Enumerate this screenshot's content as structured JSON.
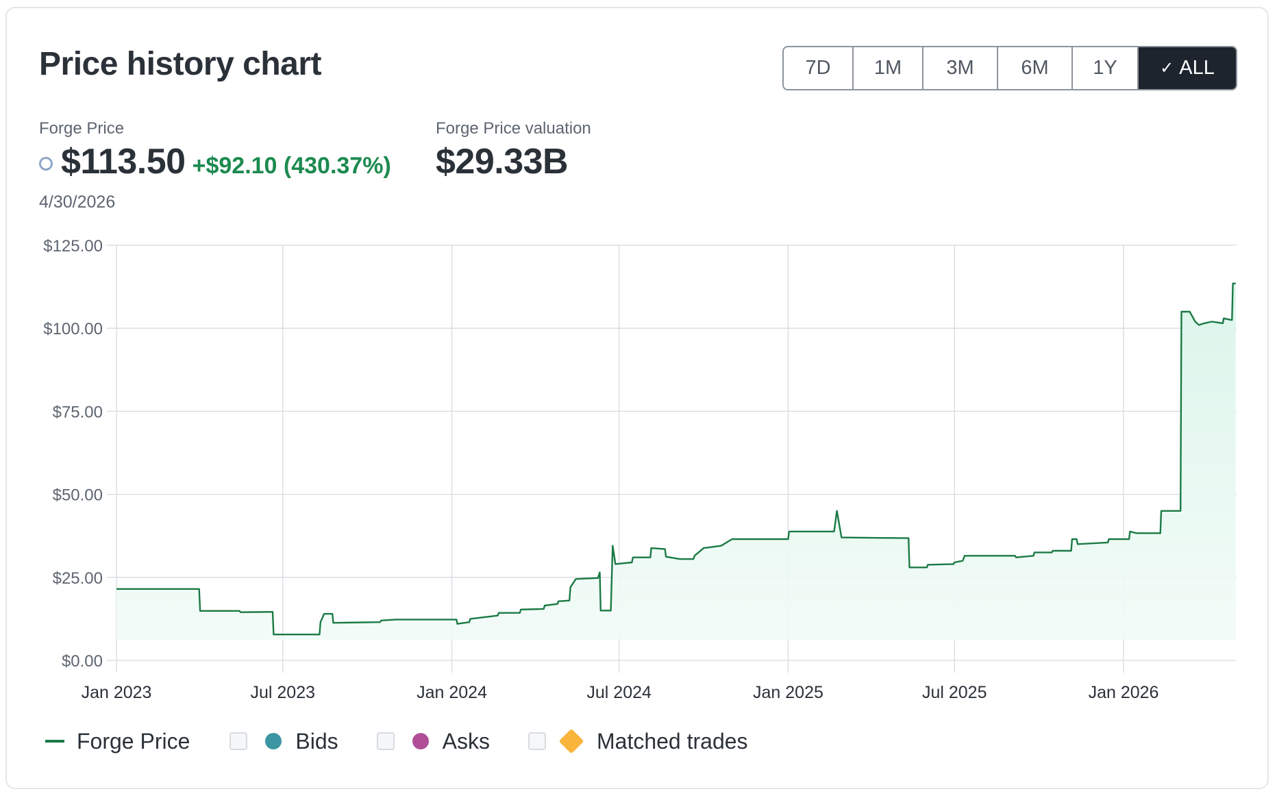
{
  "card": {
    "title": "Price history chart"
  },
  "range_buttons": [
    {
      "label": "7D",
      "active": false
    },
    {
      "label": "1M",
      "active": false
    },
    {
      "label": "3M",
      "active": false
    },
    {
      "label": "6M",
      "active": false
    },
    {
      "label": "1Y",
      "active": false
    },
    {
      "label": "ALL",
      "active": true
    }
  ],
  "stats": {
    "price_label": "Forge Price",
    "price_value": "$113.50",
    "price_change": "+$92.10 (430.37%)",
    "price_date": "4/30/2026",
    "valuation_label": "Forge Price valuation",
    "valuation_value": "$29.33B"
  },
  "legend": [
    {
      "label": "Forge Price",
      "kind": "line",
      "color": "#1a7a45",
      "checkbox": false
    },
    {
      "label": "Bids",
      "kind": "dot",
      "color": "#3b95a3",
      "checkbox": true,
      "checked": false
    },
    {
      "label": "Asks",
      "kind": "dot",
      "color": "#b04f98",
      "checkbox": true,
      "checked": false
    },
    {
      "label": "Matched trades",
      "kind": "diamond",
      "color": "#f9b53b",
      "checkbox": true,
      "checked": false
    }
  ],
  "colors": {
    "line": "#1a7a45",
    "fill": "#dcf6ec",
    "grid": "#d7dbe0",
    "active_button": "#1d242d",
    "positive_change": "#1d8a50"
  },
  "chart_data": {
    "type": "area",
    "series": [
      {
        "name": "Forge Price"
      }
    ],
    "x_range": [
      "2023-01-01",
      "2026-05-04"
    ],
    "ylim": [
      0,
      125
    ],
    "y_ticks": [
      "$0.00",
      "$25.00",
      "$50.00",
      "$75.00",
      "$100.00",
      "$125.00"
    ],
    "y_tick_values": [
      0,
      25,
      50,
      75,
      100,
      125
    ],
    "x_ticks": [
      "Jan 2023",
      "Jul 2023",
      "Jan 2024",
      "Jul 2024",
      "Jan 2025",
      "Jul 2025",
      "Jan 2026"
    ],
    "x_tick_dates": [
      "2023-01-01",
      "2023-07-01",
      "2024-01-01",
      "2024-07-01",
      "2025-01-01",
      "2025-07-01",
      "2026-01-01"
    ],
    "grid": true,
    "points": [
      [
        "2023-01-01",
        21.5
      ],
      [
        "2023-04-01",
        21.5
      ],
      [
        "2023-04-02",
        14.9
      ],
      [
        "2023-05-15",
        14.9
      ],
      [
        "2023-05-16",
        14.5
      ],
      [
        "2023-06-20",
        14.6
      ],
      [
        "2023-06-21",
        7.8
      ],
      [
        "2023-08-10",
        7.8
      ],
      [
        "2023-08-11",
        11.5
      ],
      [
        "2023-08-15",
        14.0
      ],
      [
        "2023-08-24",
        14.0
      ],
      [
        "2023-08-25",
        11.3
      ],
      [
        "2023-10-15",
        11.5
      ],
      [
        "2023-10-16",
        12.0
      ],
      [
        "2023-11-01",
        12.3
      ],
      [
        "2024-01-06",
        12.3
      ],
      [
        "2024-01-07",
        11.0
      ],
      [
        "2024-01-20",
        11.5
      ],
      [
        "2024-01-21",
        12.5
      ],
      [
        "2024-02-20",
        13.5
      ],
      [
        "2024-02-21",
        14.3
      ],
      [
        "2024-03-15",
        14.3
      ],
      [
        "2024-03-16",
        15.3
      ],
      [
        "2024-04-10",
        15.5
      ],
      [
        "2024-04-11",
        16.5
      ],
      [
        "2024-04-25",
        17.0
      ],
      [
        "2024-04-26",
        17.8
      ],
      [
        "2024-05-08",
        18.0
      ],
      [
        "2024-05-09",
        22.0
      ],
      [
        "2024-05-15",
        24.5
      ],
      [
        "2024-06-08",
        24.8
      ],
      [
        "2024-06-10",
        26.5
      ],
      [
        "2024-06-11",
        15.0
      ],
      [
        "2024-06-22",
        15.0
      ],
      [
        "2024-06-24",
        34.5
      ],
      [
        "2024-06-27",
        29.0
      ],
      [
        "2024-07-15",
        29.5
      ],
      [
        "2024-07-16",
        31.0
      ],
      [
        "2024-08-04",
        31.0
      ],
      [
        "2024-08-05",
        33.8
      ],
      [
        "2024-08-20",
        33.5
      ],
      [
        "2024-08-21",
        31.2
      ],
      [
        "2024-09-05",
        30.5
      ],
      [
        "2024-09-20",
        30.5
      ],
      [
        "2024-09-21",
        31.5
      ],
      [
        "2024-10-01",
        33.8
      ],
      [
        "2024-10-20",
        34.5
      ],
      [
        "2024-11-01",
        36.5
      ],
      [
        "2025-01-01",
        36.5
      ],
      [
        "2025-01-02",
        38.8
      ],
      [
        "2025-02-20",
        38.8
      ],
      [
        "2025-02-23",
        45.0
      ],
      [
        "2025-02-28",
        37.0
      ],
      [
        "2025-05-12",
        36.8
      ],
      [
        "2025-05-13",
        28.0
      ],
      [
        "2025-06-01",
        28.0
      ],
      [
        "2025-06-02",
        28.8
      ],
      [
        "2025-06-30",
        29.0
      ],
      [
        "2025-07-01",
        29.5
      ],
      [
        "2025-07-10",
        30.0
      ],
      [
        "2025-07-12",
        31.5
      ],
      [
        "2025-09-05",
        31.5
      ],
      [
        "2025-09-06",
        31.0
      ],
      [
        "2025-09-25",
        31.5
      ],
      [
        "2025-09-26",
        32.5
      ],
      [
        "2025-10-15",
        32.5
      ],
      [
        "2025-10-16",
        33.0
      ],
      [
        "2025-11-05",
        33.0
      ],
      [
        "2025-11-06",
        36.5
      ],
      [
        "2025-11-11",
        36.5
      ],
      [
        "2025-11-12",
        35.0
      ],
      [
        "2025-12-15",
        35.5
      ],
      [
        "2025-12-16",
        36.5
      ],
      [
        "2026-01-07",
        36.5
      ],
      [
        "2026-01-08",
        38.8
      ],
      [
        "2026-01-15",
        38.3
      ],
      [
        "2026-02-10",
        38.3
      ],
      [
        "2026-02-11",
        45.0
      ],
      [
        "2026-03-04",
        45.0
      ],
      [
        "2026-03-05",
        105.0
      ],
      [
        "2026-03-14",
        105.0
      ],
      [
        "2026-03-20",
        102.0
      ],
      [
        "2026-03-24",
        101.0
      ],
      [
        "2026-03-30",
        101.5
      ],
      [
        "2026-04-07",
        102.0
      ],
      [
        "2026-04-19",
        101.5
      ],
      [
        "2026-04-20",
        103.0
      ],
      [
        "2026-04-28",
        102.5
      ],
      [
        "2026-04-29",
        102.5
      ],
      [
        "2026-04-30",
        113.5
      ],
      [
        "2026-05-03",
        113.5
      ]
    ]
  }
}
